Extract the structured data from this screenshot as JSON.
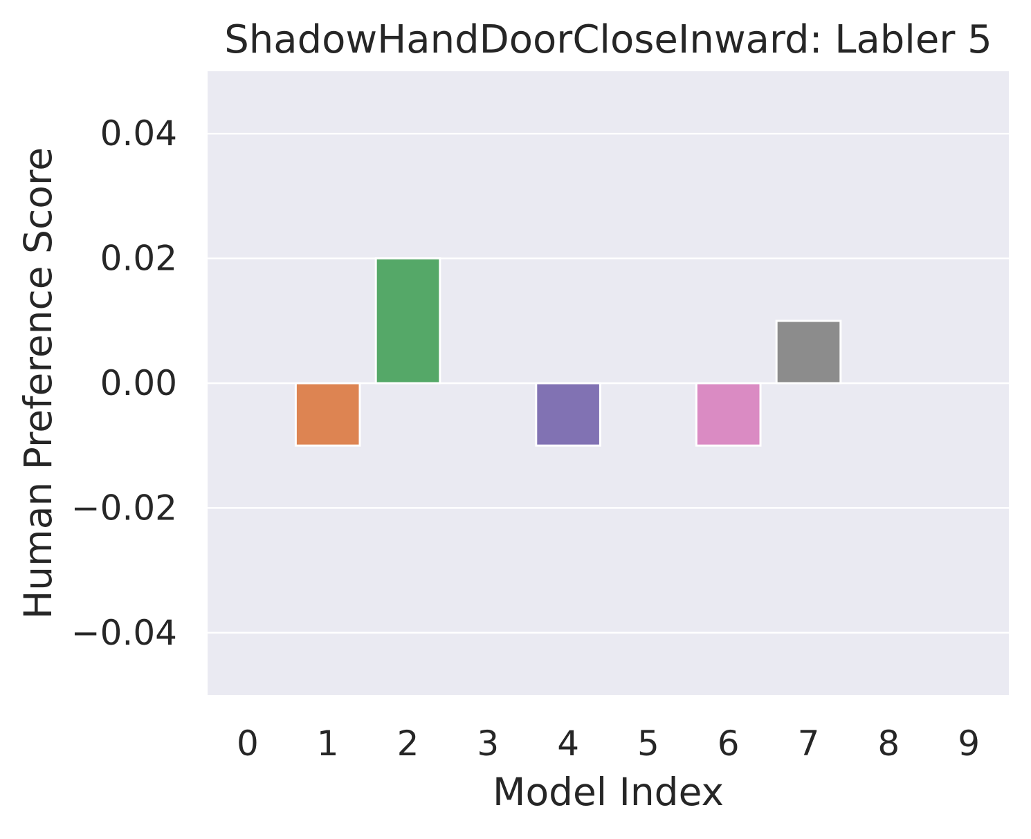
{
  "chart_data": {
    "type": "bar",
    "title": "ShadowHandDoorCloseInward: Labler 5",
    "xlabel": "Model Index",
    "ylabel": "Human Preference Score",
    "categories": [
      "0",
      "1",
      "2",
      "3",
      "4",
      "5",
      "6",
      "7",
      "8",
      "9"
    ],
    "values": [
      0.0,
      -0.01,
      0.02,
      0.0,
      -0.01,
      0.0,
      -0.01,
      0.01,
      0.0,
      0.0
    ],
    "bar_colors": [
      "#4c72b0",
      "#dd8452",
      "#55a868",
      "#c44e52",
      "#8172b3",
      "#937860",
      "#da8bc3",
      "#8c8c8c",
      "#ccb974",
      "#64b5cd"
    ],
    "ylim": [
      -0.05,
      0.05
    ],
    "yticks": [
      -0.04,
      -0.02,
      0.0,
      0.02,
      0.04
    ],
    "ytick_labels": [
      "−0.04",
      "−0.02",
      "0.00",
      "0.02",
      "0.04"
    ],
    "grid": true,
    "legend": "none",
    "style": {
      "background": "#eaeaf2",
      "grid_color": "#ffffff",
      "text_color": "#262626"
    }
  }
}
